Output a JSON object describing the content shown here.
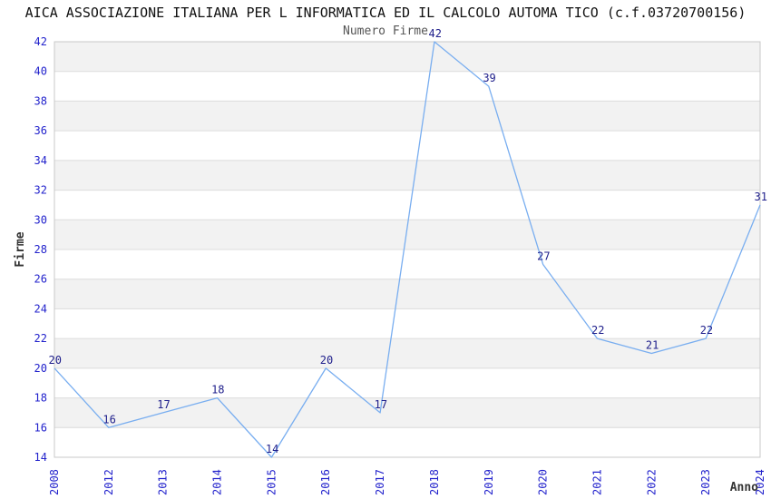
{
  "header": {
    "title": "AICA ASSOCIAZIONE ITALIANA PER L INFORMATICA ED IL CALCOLO AUTOMA TICO (c.f.03720700156)",
    "subtitle": "Numero Firme"
  },
  "chart_data": {
    "type": "line",
    "title": "Numero Firme",
    "xlabel": "Anno",
    "ylabel": "Firme",
    "categories": [
      "2008",
      "2012",
      "2013",
      "2014",
      "2015",
      "2016",
      "2017",
      "2018",
      "2019",
      "2020",
      "2021",
      "2022",
      "2023",
      "2024"
    ],
    "values": [
      20,
      16,
      17,
      18,
      14,
      20,
      17,
      42,
      39,
      27,
      22,
      21,
      22,
      31
    ],
    "ylim": [
      14,
      42
    ],
    "ytick_step": 2,
    "yticks": [
      14,
      16,
      18,
      20,
      22,
      24,
      26,
      28,
      30,
      32,
      34,
      36,
      38,
      40,
      42
    ],
    "grid": true,
    "striped_bands": true,
    "legend_position": "none",
    "x_tick_rotation_deg": 90
  },
  "colors": {
    "line": "#79aef0",
    "tick_label": "#2222cc",
    "data_label": "#20208c",
    "stripe": "#f2f2f2",
    "grid": "#dcdcdc",
    "border": "#c8c8c8",
    "title": "#111111",
    "subtitle": "#555555",
    "axis_label": "#333333",
    "background": "#ffffff"
  }
}
